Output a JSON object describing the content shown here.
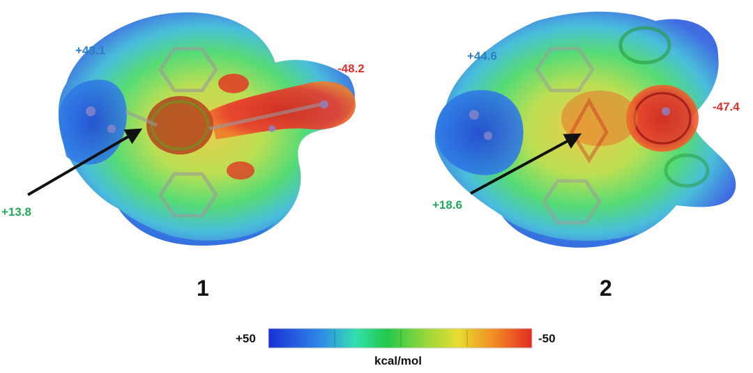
{
  "panels": [
    {
      "number": "1",
      "labels": {
        "positive_max": "+43.1",
        "negative_min": "-48.2",
        "sigma_hole": "+13.8"
      }
    },
    {
      "number": "2",
      "labels": {
        "positive_max": "+44.6",
        "negative_min": "-47.4",
        "sigma_hole": "+18.6"
      }
    }
  ],
  "color_scale": {
    "left_value": "+50",
    "right_value": "-50",
    "unit": "kcal/mol",
    "colors": [
      "#1a2fd4",
      "#2f8ae8",
      "#33e0b0",
      "#22c84a",
      "#9ad83a",
      "#e8dc30",
      "#f08a24",
      "#e32a22"
    ]
  },
  "colors": {
    "positive_label": "#2a7fc0",
    "negative_label": "#e0302a",
    "sigma_label": "#23a85a"
  }
}
